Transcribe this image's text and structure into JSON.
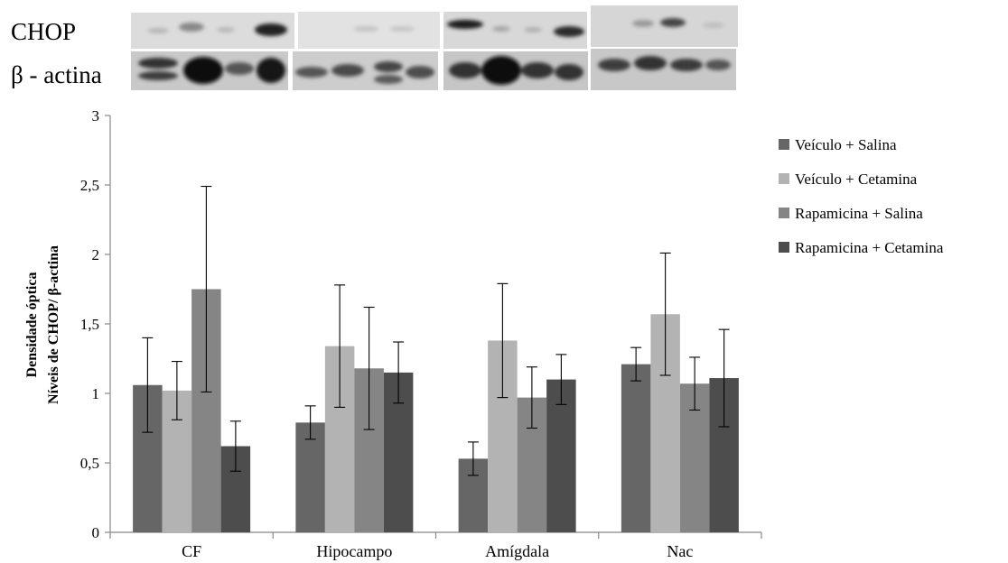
{
  "blot": {
    "chop_label": "CHOP",
    "actin_label": "β - actina"
  },
  "chart_data": {
    "type": "bar",
    "categories": [
      "CF",
      "Hipocampo",
      "Amígdala",
      "Nac"
    ],
    "series": [
      {
        "name": "Veículo + Salina",
        "color": "#666666",
        "values": [
          1.06,
          0.79,
          0.53,
          1.21
        ],
        "errors": [
          0.34,
          0.12,
          0.12,
          0.12
        ]
      },
      {
        "name": "Veículo + Cetamina",
        "color": "#b3b3b3",
        "values": [
          1.02,
          1.34,
          1.38,
          1.57
        ],
        "errors": [
          0.21,
          0.44,
          0.41,
          0.44
        ]
      },
      {
        "name": "Rapamicina + Salina",
        "color": "#858585",
        "values": [
          1.75,
          1.18,
          0.97,
          1.07
        ],
        "errors": [
          0.74,
          0.44,
          0.22,
          0.19
        ]
      },
      {
        "name": "Rapamicina + Cetamina",
        "color": "#4d4d4d",
        "values": [
          0.62,
          1.15,
          1.1,
          1.11
        ],
        "errors": [
          0.18,
          0.22,
          0.18,
          0.35
        ]
      }
    ],
    "ylabel_line1": "Densidade óptica",
    "ylabel_line2": "Níveis de CHOP/ β-actina",
    "ylim": [
      0,
      3
    ],
    "yticks": [
      "0",
      "0,5",
      "1",
      "1,5",
      "2",
      "2,5",
      "3"
    ],
    "legend_position": "right"
  }
}
